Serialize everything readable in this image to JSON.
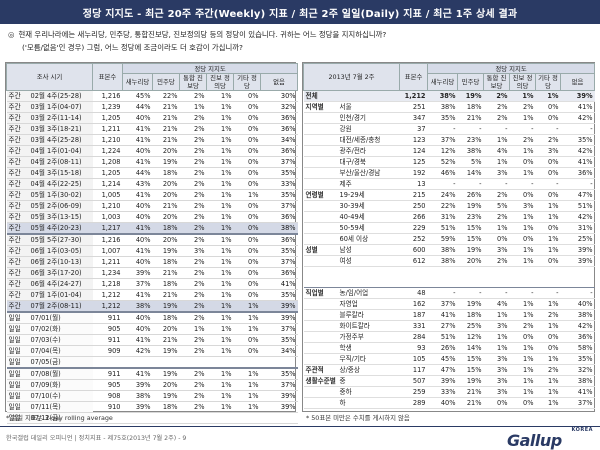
{
  "title": "정당 지지도 - 최근 20주 주간(Weekly) 지표 / 최근 2주 일일(Daily) 지표 / 최근 1주 상세 결과",
  "question": {
    "line1": "현재 우리나라에는 새누리당, 민주당, 통합진보당, 진보정의당 등의 정당이 있습니다. 귀하는 어느 정당을 지지하십니까?",
    "line2": "('모름/없음'인 경우) 그럼, 어느 정당에 조금이라도 더 호감이 가십니까?"
  },
  "headers": {
    "period": "조사 시기",
    "period_right": "2013년 7월 2주",
    "base": "표본수",
    "support_group": "정당 지지도",
    "saenuri": "새누리당",
    "minju": "민주당",
    "tonghap": "통합 진보당",
    "jinbo": "진보 정의당",
    "other": "기타 정당",
    "none": "없음"
  },
  "weekly": [
    {
      "type": "주간",
      "period": "02월 4주(25-28)",
      "n": "1,216",
      "s": "45%",
      "m": "22%",
      "t": "2%",
      "j": "1%",
      "o": "0%",
      "x": "30%"
    },
    {
      "type": "주간",
      "period": "03월 1주(04-07)",
      "n": "1,239",
      "s": "44%",
      "m": "21%",
      "t": "1%",
      "j": "1%",
      "o": "0%",
      "x": "32%"
    },
    {
      "type": "주간",
      "period": "03월 2주(11-14)",
      "n": "1,205",
      "s": "40%",
      "m": "21%",
      "t": "2%",
      "j": "1%",
      "o": "0%",
      "x": "36%"
    },
    {
      "type": "주간",
      "period": "03월 3주(18-21)",
      "n": "1,211",
      "s": "41%",
      "m": "21%",
      "t": "2%",
      "j": "1%",
      "o": "0%",
      "x": "36%"
    },
    {
      "type": "주간",
      "period": "03월 4주(25-28)",
      "n": "1,210",
      "s": "41%",
      "m": "21%",
      "t": "2%",
      "j": "1%",
      "o": "0%",
      "x": "34%"
    },
    {
      "type": "주간",
      "period": "04월 1주(01-04)",
      "n": "1,224",
      "s": "40%",
      "m": "20%",
      "t": "2%",
      "j": "1%",
      "o": "0%",
      "x": "36%"
    },
    {
      "type": "주간",
      "period": "04월 2주(08-11)",
      "n": "1,208",
      "s": "41%",
      "m": "19%",
      "t": "2%",
      "j": "1%",
      "o": "0%",
      "x": "37%"
    },
    {
      "type": "주간",
      "period": "04월 3주(15-18)",
      "n": "1,205",
      "s": "44%",
      "m": "18%",
      "t": "2%",
      "j": "1%",
      "o": "0%",
      "x": "35%"
    },
    {
      "type": "주간",
      "period": "04월 4주(22-25)",
      "n": "1,214",
      "s": "43%",
      "m": "20%",
      "t": "2%",
      "j": "1%",
      "o": "0%",
      "x": "33%"
    },
    {
      "type": "주간",
      "period": "05월 1주(30-02)",
      "n": "1,005",
      "s": "41%",
      "m": "20%",
      "t": "2%",
      "j": "1%",
      "o": "1%",
      "x": "35%"
    },
    {
      "type": "주간",
      "period": "05월 2주(06-09)",
      "n": "1,210",
      "s": "40%",
      "m": "21%",
      "t": "2%",
      "j": "1%",
      "o": "0%",
      "x": "37%"
    },
    {
      "type": "주간",
      "period": "05월 3주(13-15)",
      "n": "1,003",
      "s": "40%",
      "m": "20%",
      "t": "2%",
      "j": "1%",
      "o": "0%",
      "x": "36%"
    },
    {
      "type": "주간",
      "period": "05월 4주(20-23)",
      "n": "1,217",
      "s": "41%",
      "m": "18%",
      "t": "2%",
      "j": "1%",
      "o": "0%",
      "x": "38%",
      "hl": true
    },
    {
      "type": "주간",
      "period": "05월 5주(27-30)",
      "n": "1,216",
      "s": "40%",
      "m": "20%",
      "t": "2%",
      "j": "1%",
      "o": "0%",
      "x": "36%",
      "sep": true
    },
    {
      "type": "주간",
      "period": "06월 1주(03-05)",
      "n": "1,007",
      "s": "41%",
      "m": "19%",
      "t": "3%",
      "j": "1%",
      "o": "0%",
      "x": "35%"
    },
    {
      "type": "주간",
      "period": "06월 2주(10-13)",
      "n": "1,211",
      "s": "40%",
      "m": "18%",
      "t": "2%",
      "j": "1%",
      "o": "0%",
      "x": "37%"
    },
    {
      "type": "주간",
      "period": "06월 3주(17-20)",
      "n": "1,234",
      "s": "39%",
      "m": "21%",
      "t": "2%",
      "j": "1%",
      "o": "0%",
      "x": "36%"
    },
    {
      "type": "주간",
      "period": "06월 4주(24-27)",
      "n": "1,218",
      "s": "37%",
      "m": "18%",
      "t": "2%",
      "j": "1%",
      "o": "0%",
      "x": "41%"
    },
    {
      "type": "주간",
      "period": "07월 1주(01-04)",
      "n": "1,212",
      "s": "41%",
      "m": "21%",
      "t": "2%",
      "j": "1%",
      "o": "0%",
      "x": "35%"
    },
    {
      "type": "주간",
      "period": "07월 2주(08-11)",
      "n": "1,212",
      "s": "38%",
      "m": "19%",
      "t": "2%",
      "j": "1%",
      "o": "1%",
      "x": "39%",
      "hl": true
    }
  ],
  "daily": [
    {
      "type": "일일",
      "period": "07/01(월)",
      "n": "911",
      "s": "40%",
      "m": "18%",
      "t": "2%",
      "j": "1%",
      "o": "1%",
      "x": "39%",
      "sep": true
    },
    {
      "type": "일일",
      "period": "07/02(화)",
      "n": "905",
      "s": "40%",
      "m": "20%",
      "t": "1%",
      "j": "1%",
      "o": "1%",
      "x": "37%"
    },
    {
      "type": "일일",
      "period": "07/03(수)",
      "n": "911",
      "s": "41%",
      "m": "21%",
      "t": "2%",
      "j": "1%",
      "o": "0%",
      "x": "35%"
    },
    {
      "type": "일일",
      "period": "07/04(목)",
      "n": "909",
      "s": "42%",
      "m": "19%",
      "t": "2%",
      "j": "1%",
      "o": "0%",
      "x": "34%"
    },
    {
      "type": "일일",
      "period": "07/05(금)",
      "n": "",
      "s": "",
      "m": "",
      "t": "",
      "j": "",
      "o": "",
      "x": ""
    },
    {
      "type": "일일",
      "period": "07/08(월)",
      "n": "911",
      "s": "41%",
      "m": "19%",
      "t": "2%",
      "j": "1%",
      "o": "1%",
      "x": "35%",
      "sep": true
    },
    {
      "type": "일일",
      "period": "07/09(화)",
      "n": "905",
      "s": "39%",
      "m": "20%",
      "t": "2%",
      "j": "1%",
      "o": "1%",
      "x": "37%"
    },
    {
      "type": "일일",
      "period": "07/10(수)",
      "n": "908",
      "s": "38%",
      "m": "19%",
      "t": "2%",
      "j": "1%",
      "o": "1%",
      "x": "39%"
    },
    {
      "type": "일일",
      "period": "07/11(목)",
      "n": "910",
      "s": "39%",
      "m": "18%",
      "t": "2%",
      "j": "1%",
      "o": "1%",
      "x": "39%"
    },
    {
      "type": "일일",
      "period": "07/12(금)",
      "n": "",
      "s": "",
      "m": "",
      "t": "",
      "j": "",
      "o": "",
      "x": ""
    }
  ],
  "detail": [
    {
      "g": "전체",
      "sub": "",
      "n": "1,212",
      "s": "38%",
      "m": "19%",
      "t": "2%",
      "j": "1%",
      "o": "1%",
      "x": "39%",
      "total": true
    },
    {
      "g": "지역별",
      "sub": "서울",
      "n": "251",
      "s": "38%",
      "m": "18%",
      "t": "2%",
      "j": "2%",
      "o": "0%",
      "x": "41%",
      "gstart": true
    },
    {
      "g": "",
      "sub": "인천/경기",
      "n": "347",
      "s": "35%",
      "m": "21%",
      "t": "2%",
      "j": "1%",
      "o": "0%",
      "x": "42%"
    },
    {
      "g": "",
      "sub": "강원",
      "n": "37",
      "s": "-",
      "m": "-",
      "t": "-",
      "j": "-",
      "o": "-",
      "x": "-"
    },
    {
      "g": "",
      "sub": "대전/세종/충청",
      "n": "123",
      "s": "37%",
      "m": "23%",
      "t": "1%",
      "j": "2%",
      "o": "2%",
      "x": "35%"
    },
    {
      "g": "",
      "sub": "광주/전라",
      "n": "124",
      "s": "12%",
      "m": "38%",
      "t": "4%",
      "j": "1%",
      "o": "3%",
      "x": "42%"
    },
    {
      "g": "",
      "sub": "대구/경북",
      "n": "125",
      "s": "52%",
      "m": "5%",
      "t": "1%",
      "j": "0%",
      "o": "0%",
      "x": "41%"
    },
    {
      "g": "",
      "sub": "부산/울산/경남",
      "n": "192",
      "s": "46%",
      "m": "14%",
      "t": "3%",
      "j": "1%",
      "o": "0%",
      "x": "36%"
    },
    {
      "g": "",
      "sub": "제주",
      "n": "13",
      "s": "-",
      "m": "-",
      "t": "-",
      "j": "-",
      "o": "-",
      "x": "-"
    },
    {
      "g": "연령별",
      "sub": "19-29세",
      "n": "215",
      "s": "24%",
      "m": "26%",
      "t": "2%",
      "j": "0%",
      "o": "0%",
      "x": "47%",
      "gstart": true
    },
    {
      "g": "",
      "sub": "30-39세",
      "n": "250",
      "s": "22%",
      "m": "19%",
      "t": "5%",
      "j": "3%",
      "o": "1%",
      "x": "51%"
    },
    {
      "g": "",
      "sub": "40-49세",
      "n": "266",
      "s": "31%",
      "m": "23%",
      "t": "2%",
      "j": "1%",
      "o": "1%",
      "x": "42%"
    },
    {
      "g": "",
      "sub": "50-59세",
      "n": "229",
      "s": "51%",
      "m": "15%",
      "t": "1%",
      "j": "1%",
      "o": "0%",
      "x": "31%"
    },
    {
      "g": "",
      "sub": "60세 이상",
      "n": "252",
      "s": "59%",
      "m": "15%",
      "t": "0%",
      "j": "0%",
      "o": "1%",
      "x": "25%"
    },
    {
      "g": "성별",
      "sub": "남성",
      "n": "600",
      "s": "38%",
      "m": "19%",
      "t": "3%",
      "j": "1%",
      "o": "1%",
      "x": "39%",
      "gstart": true
    },
    {
      "g": "",
      "sub": "여성",
      "n": "612",
      "s": "38%",
      "m": "20%",
      "t": "2%",
      "j": "1%",
      "o": "0%",
      "x": "39%"
    },
    {
      "spacer": true
    },
    {
      "spacer": true
    },
    {
      "g": "직업별",
      "sub": "농/임/어업",
      "n": "48",
      "s": "-",
      "m": "-",
      "t": "-",
      "j": "-",
      "o": "-",
      "x": "-",
      "gstart": true
    },
    {
      "g": "",
      "sub": "자영업",
      "n": "162",
      "s": "37%",
      "m": "19%",
      "t": "4%",
      "j": "1%",
      "o": "1%",
      "x": "40%"
    },
    {
      "g": "",
      "sub": "블루칼라",
      "n": "187",
      "s": "41%",
      "m": "18%",
      "t": "1%",
      "j": "1%",
      "o": "2%",
      "x": "38%"
    },
    {
      "g": "",
      "sub": "화이트칼라",
      "n": "331",
      "s": "27%",
      "m": "25%",
      "t": "3%",
      "j": "2%",
      "o": "1%",
      "x": "42%"
    },
    {
      "g": "",
      "sub": "가정주부",
      "n": "284",
      "s": "51%",
      "m": "12%",
      "t": "1%",
      "j": "0%",
      "o": "0%",
      "x": "36%"
    },
    {
      "g": "",
      "sub": "학생",
      "n": "93",
      "s": "26%",
      "m": "14%",
      "t": "1%",
      "j": "1%",
      "o": "0%",
      "x": "58%"
    },
    {
      "g": "",
      "sub": "무직/기타",
      "n": "105",
      "s": "45%",
      "m": "15%",
      "t": "3%",
      "j": "1%",
      "o": "1%",
      "x": "35%"
    },
    {
      "g": "주관적",
      "sub": "상/중상",
      "n": "117",
      "s": "47%",
      "m": "15%",
      "t": "3%",
      "j": "1%",
      "o": "2%",
      "x": "32%",
      "gstart": true
    },
    {
      "g": "생활수준별",
      "sub": "중",
      "n": "507",
      "s": "39%",
      "m": "19%",
      "t": "3%",
      "j": "1%",
      "o": "1%",
      "x": "38%"
    },
    {
      "g": "",
      "sub": "중하",
      "n": "259",
      "s": "33%",
      "m": "21%",
      "t": "3%",
      "j": "1%",
      "o": "1%",
      "x": "41%"
    },
    {
      "g": "",
      "sub": "하",
      "n": "289",
      "s": "40%",
      "m": "21%",
      "t": "0%",
      "j": "0%",
      "o": "1%",
      "x": "37%"
    }
  ],
  "notes": {
    "left": "* 일일 지표는 3-day rolling average",
    "right": "* 50표본 미만은 수치를 게시하지 않음"
  },
  "footer": "한국갤럽 데일리 오피니언 | 정치지표 - 제75호(2013년 7월 2주) - 9",
  "logo": {
    "word": "Gallup",
    "sub": "KOREA"
  },
  "colors": {
    "title_bg": "#2a3a64",
    "header_bg": "#dfe3ec",
    "highlight": "#d4d9e6"
  }
}
